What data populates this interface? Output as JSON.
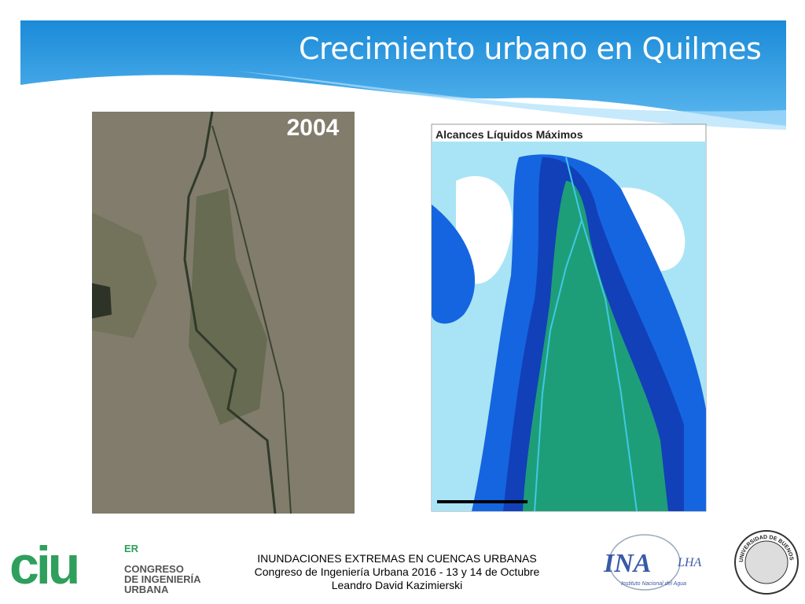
{
  "header": {
    "title": "Crecimiento urbano en Quilmes"
  },
  "images": [
    {
      "label": "2004"
    },
    {
      "title": "Alcances Líquidos Máximos"
    }
  ],
  "footer": {
    "lines": [
      "INUNDACIONES EXTREMAS EN CUENCAS URBANAS",
      "Congreso de Ingeniería Urbana 2016 - 13 y 14 de Octubre",
      "Leandro David Kazimierski"
    ]
  },
  "logos": {
    "ciu": {
      "mark": "ciu",
      "sup": "ER",
      "lines": [
        "CONGRESO",
        "DE INGENIERÍA",
        "URBANA"
      ]
    },
    "ina": {
      "name": "INA",
      "sub": "LHA",
      "caption": "Instituto Nacional del Agua"
    },
    "uba": {
      "ring": "UNIVERSIDAD DE BUENOS AIRES"
    }
  }
}
